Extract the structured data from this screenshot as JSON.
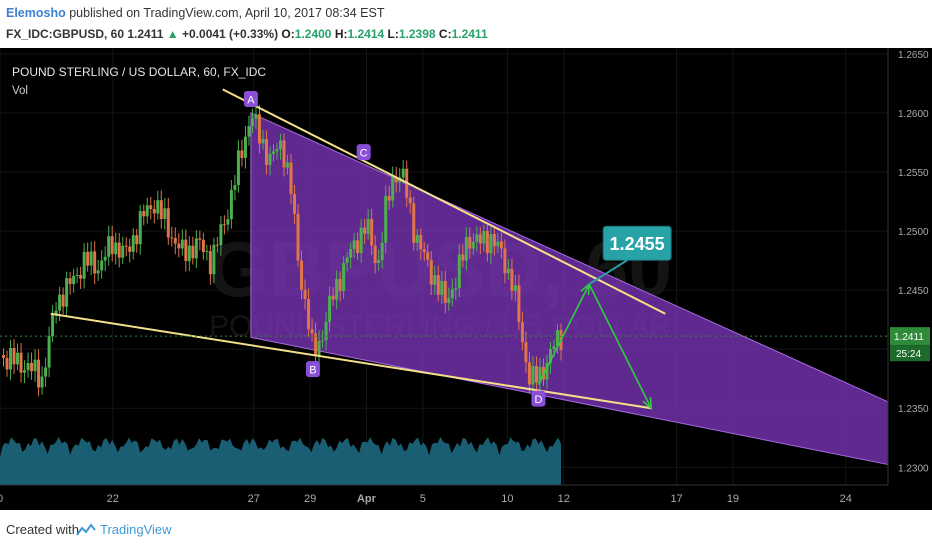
{
  "header": {
    "author": "Elemosho",
    "published_text": "published on TradingView.com, April 10, 2017 08:34 EST",
    "symbol": "FX_IDC:GBPUSD, 60",
    "last": "1.2411",
    "change_arrow": "▲",
    "change": "+0.0041 (+0.33%)",
    "o_label": "O:",
    "o_value": "1.2400",
    "h_label": "H:",
    "h_value": "1.2414",
    "l_label": "L:",
    "l_value": "1.2398",
    "c_label": "C:",
    "c_value": "1.2411"
  },
  "footer": {
    "created_with": "Created with",
    "brand": "TradingView"
  },
  "colors": {
    "background": "#000000",
    "channel_fill": "#7b34b8",
    "trendline": "#f2e08a",
    "arrow": "#2ecc40",
    "target_box": "#27a3a8",
    "price_tag": "#2e8b3a",
    "candle_up": "#4caf50",
    "candle_down": "#e0744a",
    "volume": "#1f6f88"
  },
  "chart_data": {
    "type": "candlestick",
    "title": "POUND STERLING / US DOLLAR, 60, FX_IDC",
    "subtitle": "Vol",
    "watermark": "GBPUSD, 60",
    "watermark_sub": "POUND STERLING / US DOLLAR",
    "y_ticks": [
      "1.2650",
      "1.2600",
      "1.2550",
      "1.2500",
      "1.2450",
      "1.2400",
      "1.2350",
      "1.2300"
    ],
    "ylim": [
      1.2285,
      1.2655
    ],
    "x_ticks": [
      "0",
      "22",
      "27",
      "29",
      "Apr",
      "5",
      "10",
      "12",
      "17",
      "19",
      "24"
    ],
    "x_tick_positions": [
      0,
      4,
      9,
      11,
      13,
      15,
      18,
      20,
      24,
      26,
      30
    ],
    "xlim": [
      0,
      31.5
    ],
    "price_path": [
      [
        0,
        1.2395
      ],
      [
        1,
        1.2385
      ],
      [
        1.5,
        1.2375
      ],
      [
        2,
        1.244
      ],
      [
        2.5,
        1.2455
      ],
      [
        3,
        1.2475
      ],
      [
        3.5,
        1.247
      ],
      [
        4,
        1.249
      ],
      [
        4.5,
        1.248
      ],
      [
        5,
        1.251
      ],
      [
        5.5,
        1.2525
      ],
      [
        6,
        1.25
      ],
      [
        6.5,
        1.248
      ],
      [
        7,
        1.249
      ],
      [
        7.5,
        1.2475
      ],
      [
        8,
        1.251
      ],
      [
        8.5,
        1.256
      ],
      [
        8.9,
        1.26
      ],
      [
        9.2,
        1.258
      ],
      [
        9.6,
        1.256
      ],
      [
        10,
        1.2575
      ],
      [
        10.3,
        1.254
      ],
      [
        10.6,
        1.247
      ],
      [
        10.9,
        1.243
      ],
      [
        11.1,
        1.2395
      ],
      [
        11.4,
        1.241
      ],
      [
        11.8,
        1.2445
      ],
      [
        12.2,
        1.247
      ],
      [
        12.6,
        1.249
      ],
      [
        13,
        1.2505
      ],
      [
        13.4,
        1.247
      ],
      [
        13.7,
        1.252
      ],
      [
        14.0,
        1.255
      ],
      [
        14.3,
        1.2545
      ],
      [
        14.7,
        1.25
      ],
      [
        15.0,
        1.248
      ],
      [
        15.4,
        1.246
      ],
      [
        15.8,
        1.244
      ],
      [
        16.2,
        1.246
      ],
      [
        16.6,
        1.2495
      ],
      [
        17.0,
        1.249
      ],
      [
        17.4,
        1.2495
      ],
      [
        17.8,
        1.248
      ],
      [
        18.2,
        1.2455
      ],
      [
        18.5,
        1.241
      ],
      [
        18.8,
        1.2375
      ],
      [
        19.1,
        1.2375
      ],
      [
        19.5,
        1.2395
      ],
      [
        19.7,
        1.2405
      ],
      [
        19.9,
        1.2411
      ]
    ],
    "current_price": "1.2411",
    "countdown": "25:24",
    "points": [
      {
        "label": "A",
        "x": 8.9,
        "y": 1.26,
        "pos": "above"
      },
      {
        "label": "B",
        "x": 11.1,
        "y": 1.2395,
        "pos": "below"
      },
      {
        "label": "C",
        "x": 12.9,
        "y": 1.2555,
        "pos": "above"
      },
      {
        "label": "D",
        "x": 19.1,
        "y": 1.237,
        "pos": "below"
      }
    ],
    "upper_trendline": [
      [
        7.9,
        1.262
      ],
      [
        23.6,
        1.243
      ]
    ],
    "lower_trendline": [
      [
        1.8,
        1.243
      ],
      [
        23.1,
        1.235
      ]
    ],
    "channel": [
      [
        8.9,
        1.26
      ],
      [
        32.0,
        1.235
      ],
      [
        32.0,
        1.23
      ],
      [
        8.9,
        1.241
      ]
    ],
    "projection": [
      [
        19.1,
        1.237
      ],
      [
        20.9,
        1.2455
      ],
      [
        23.1,
        1.235
      ]
    ],
    "target_label": "1.2455"
  }
}
